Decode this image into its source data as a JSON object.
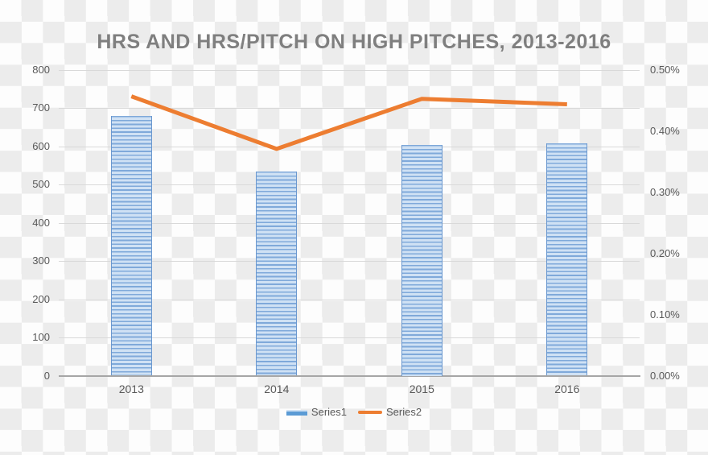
{
  "chart_data": {
    "type": "combo-bar-line",
    "title": "HRS AND HRS/PITCH ON HIGH PITCHES, 2013-2016",
    "categories": [
      "2013",
      "2014",
      "2015",
      "2016"
    ],
    "series": [
      {
        "name": "Series1",
        "type": "bar",
        "axis": "left",
        "values": [
          680,
          535,
          605,
          608
        ]
      },
      {
        "name": "Series2",
        "type": "line",
        "axis": "right",
        "values": [
          0.457,
          0.371,
          0.453,
          0.444
        ],
        "unit": "%"
      }
    ],
    "left_axis": {
      "min": 0,
      "max": 800,
      "step": 100,
      "ticks": [
        "0",
        "100",
        "200",
        "300",
        "400",
        "500",
        "600",
        "700",
        "800"
      ]
    },
    "right_axis": {
      "min": 0,
      "max": 0.5,
      "step": 0.1,
      "ticks": [
        "0.00%",
        "0.10%",
        "0.20%",
        "0.30%",
        "0.40%",
        "0.50%"
      ]
    },
    "grid": "horizontal",
    "legend_position": "bottom",
    "colors": {
      "bar_stripe_dark": "#7fa9da",
      "bar_stripe_light": "#cfe1f4",
      "bar_edge": "#6b98cf",
      "legend_bar_swatch": "#5b9bd5",
      "line": "#ED7D31",
      "gridline": "#d9d9d9",
      "axis_line": "#a6a6a6",
      "label_text": "#595959",
      "title_text": "#7f7f7f",
      "checker_gray": "#ececec",
      "checker_white": "#fdfdfd"
    }
  }
}
